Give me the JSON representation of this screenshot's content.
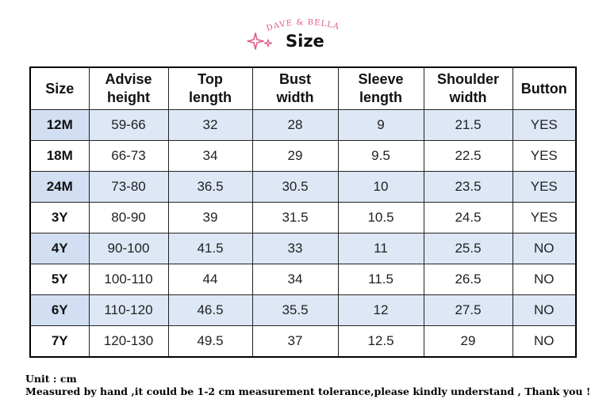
{
  "brand": {
    "logo_text": "DAVE & BELLA",
    "logo_color": "#e05a8c"
  },
  "title": "Size",
  "accent_color": "#e05a8c",
  "table": {
    "headers": [
      [
        "Size"
      ],
      [
        "Advise",
        "height"
      ],
      [
        "Top",
        "length"
      ],
      [
        "Bust",
        "width"
      ],
      [
        "Sleeve",
        "length"
      ],
      [
        "Shoulder",
        "width"
      ],
      [
        "Button"
      ]
    ],
    "rows": [
      [
        "12M",
        "59-66",
        "32",
        "28",
        "9",
        "21.5",
        "YES"
      ],
      [
        "18M",
        "66-73",
        "34",
        "29",
        "9.5",
        "22.5",
        "YES"
      ],
      [
        "24M",
        "73-80",
        "36.5",
        "30.5",
        "10",
        "23.5",
        "YES"
      ],
      [
        "3Y",
        "80-90",
        "39",
        "31.5",
        "10.5",
        "24.5",
        "YES"
      ],
      [
        "4Y",
        "90-100",
        "41.5",
        "33",
        "11",
        "25.5",
        "NO"
      ],
      [
        "5Y",
        "100-110",
        "44",
        "34",
        "11.5",
        "26.5",
        "NO"
      ],
      [
        "6Y",
        "110-120",
        "46.5",
        "35.5",
        "12",
        "27.5",
        "NO"
      ],
      [
        "7Y",
        "120-130",
        "49.5",
        "37",
        "12.5",
        "29",
        "NO"
      ]
    ],
    "shaded_row_color": "#dde7f5"
  },
  "notes": {
    "unit": "Unit : cm",
    "tolerance": "Measured by hand ,it could be 1-2 cm measurement tolerance,please kindly understand , Thank you !"
  }
}
